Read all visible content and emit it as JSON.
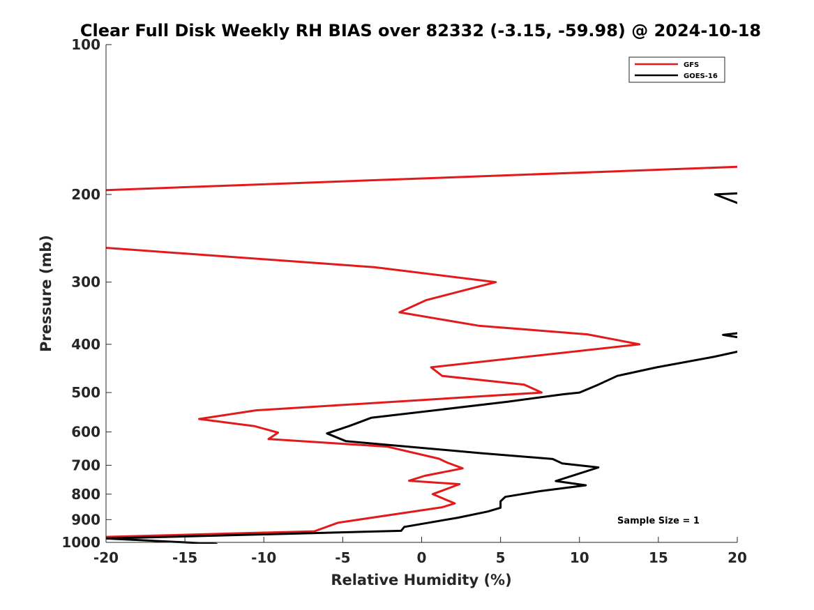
{
  "chart_data": {
    "type": "line",
    "title": "Clear Full Disk Weekly RH BIAS over 82332 (-3.15, -59.98) @ 2024-10-18",
    "xlabel": "Relative Humidity (%)",
    "ylabel": "Pressure (mb)",
    "xlim": [
      -20,
      20
    ],
    "ylim": [
      1000,
      100
    ],
    "y_scale": "log",
    "x_ticks": [
      "-20",
      "-15",
      "-10",
      "-5",
      "0",
      "5",
      "10",
      "15",
      "20"
    ],
    "y_ticks": [
      "100",
      "200",
      "300",
      "400",
      "500",
      "600",
      "700",
      "800",
      "900",
      "1000"
    ],
    "legend_position": "top-right",
    "annotation": "Sample Size = 1",
    "series": [
      {
        "name": "GFS",
        "color": "#e31a1c",
        "segments": [
          [
            [
              20,
              176
            ],
            [
              -20,
              196
            ]
          ],
          [
            [
              -20,
              256
            ],
            [
              -3,
              280
            ],
            [
              4.7,
              300
            ],
            [
              0.3,
              326
            ],
            [
              -1.4,
              345
            ],
            [
              3.6,
              367
            ],
            [
              10.5,
              382
            ],
            [
              13.8,
              400
            ],
            [
              0.6,
              445
            ],
            [
              1.3,
              463
            ],
            [
              6.5,
              482
            ],
            [
              7.6,
              500
            ],
            [
              -10.5,
              543
            ],
            [
              -14.1,
              565
            ],
            [
              -10.6,
              584
            ],
            [
              -9.1,
              602
            ],
            [
              -9.7,
              620
            ],
            [
              -2.2,
              642
            ],
            [
              1.1,
              679
            ],
            [
              1.6,
              691
            ],
            [
              2.6,
              710
            ],
            [
              0.2,
              735
            ],
            [
              -0.8,
              752
            ],
            [
              2.4,
              764
            ],
            [
              0.7,
              800
            ],
            [
              2.1,
              835
            ],
            [
              1.3,
              850
            ],
            [
              -5.3,
              913
            ],
            [
              -6.8,
              950
            ],
            [
              -20,
              975
            ]
          ]
        ]
      },
      {
        "name": "GOES-16",
        "color": "#000000",
        "segments": [
          [
            [
              20,
              199
            ],
            [
              18.6,
              200
            ],
            [
              20,
              208
            ]
          ],
          [
            [
              20,
              380
            ],
            [
              19.1,
              383
            ],
            [
              20,
              387
            ]
          ],
          [
            [
              20,
              414
            ],
            [
              18.5,
              424
            ],
            [
              14.9,
              445
            ],
            [
              12.4,
              463
            ],
            [
              11.2,
              482
            ],
            [
              10,
              500
            ],
            [
              9,
              504
            ],
            [
              5.4,
              522
            ],
            [
              -3.2,
              562
            ],
            [
              -4.6,
              584
            ],
            [
              -6,
              604
            ],
            [
              -4.8,
              626
            ],
            [
              3.8,
              662
            ],
            [
              8.3,
              680
            ],
            [
              8.9,
              694
            ],
            [
              11.2,
              707
            ],
            [
              9.6,
              734
            ],
            [
              8.5,
              753
            ],
            [
              10.4,
              768
            ],
            [
              7.5,
              789
            ],
            [
              5.3,
              810
            ],
            [
              5,
              827
            ],
            [
              5,
              852
            ],
            [
              4.2,
              867
            ],
            [
              2.3,
              892
            ],
            [
              -1.1,
              931
            ],
            [
              -1.3,
              948
            ],
            [
              -20,
              982
            ],
            [
              -13,
              1007
            ]
          ]
        ]
      }
    ]
  }
}
